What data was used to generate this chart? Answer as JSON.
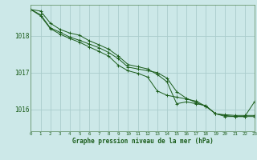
{
  "title": "Graphe pression niveau de la mer (hPa)",
  "bg_color": "#cce8e8",
  "plot_bg_color": "#cce8e8",
  "grid_color": "#aacccc",
  "line_color": "#1a5c1a",
  "xlim": [
    0,
    23
  ],
  "ylim": [
    1015.4,
    1018.85
  ],
  "yticks": [
    1016,
    1017,
    1018
  ],
  "xticks": [
    0,
    1,
    2,
    3,
    4,
    5,
    6,
    7,
    8,
    9,
    10,
    11,
    12,
    13,
    14,
    15,
    16,
    17,
    18,
    19,
    20,
    21,
    22,
    23
  ],
  "series": [
    [
      1018.72,
      1018.68,
      1018.35,
      1018.18,
      1018.08,
      1018.02,
      1017.87,
      1017.76,
      1017.64,
      1017.45,
      1017.22,
      1017.16,
      1017.1,
      1016.95,
      1016.75,
      1016.15,
      1016.2,
      1016.15,
      1016.1,
      1015.87,
      1015.85,
      1015.83,
      1015.83,
      1015.83
    ],
    [
      1018.72,
      1018.58,
      1018.22,
      1018.1,
      1017.97,
      1017.88,
      1017.78,
      1017.68,
      1017.55,
      1017.38,
      1017.15,
      1017.1,
      1017.05,
      1017.0,
      1016.85,
      1016.48,
      1016.3,
      1016.18,
      1016.08,
      1015.88,
      1015.83,
      1015.8,
      1015.8,
      1015.8
    ],
    [
      1018.72,
      1018.55,
      1018.2,
      1018.05,
      1017.93,
      1017.83,
      1017.7,
      1017.58,
      1017.45,
      1017.2,
      1017.05,
      1016.98,
      1016.88,
      1016.5,
      1016.38,
      1016.33,
      1016.28,
      1016.22,
      1016.08,
      1015.88,
      1015.8,
      1015.8,
      1015.8,
      1016.2
    ]
  ]
}
